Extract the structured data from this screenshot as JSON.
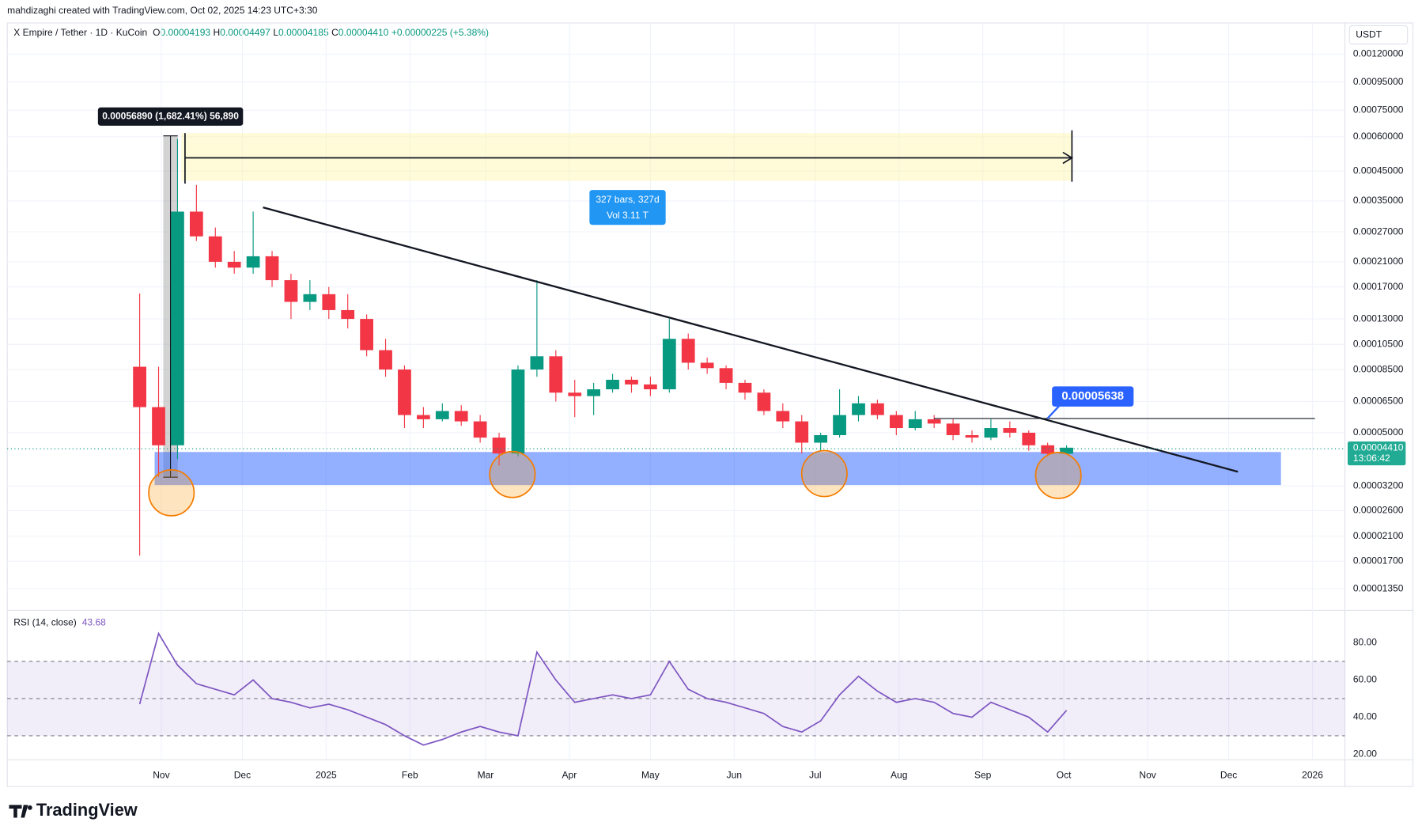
{
  "header": {
    "attribution": "mahdizaghi created with TradingView.com, Oct 02, 2025 14:23 UTC+3:30",
    "symbol": "X Empire / Tether · 1D · KuCoin",
    "ohlc": [
      {
        "label": "O",
        "value": "0.00004193"
      },
      {
        "label": "H",
        "value": "0.00004497"
      },
      {
        "label": "L",
        "value": "0.00004185"
      },
      {
        "label": "C",
        "value": "0.00004410"
      }
    ],
    "change": "+0.00000225 (+5.38%)",
    "currency": "USDT"
  },
  "chart_data": [
    {
      "type": "candlestick",
      "log_scale": true,
      "x": [
        "2024-10-24",
        "2024-10-31",
        "2024-11-07",
        "2024-11-14",
        "2024-11-21",
        "2024-11-28",
        "2024-12-05",
        "2024-12-12",
        "2024-12-19",
        "2024-12-26",
        "2025-01-02",
        "2025-01-09",
        "2025-01-16",
        "2025-01-23",
        "2025-01-30",
        "2025-02-06",
        "2025-02-13",
        "2025-02-20",
        "2025-02-27",
        "2025-03-06",
        "2025-03-13",
        "2025-03-20",
        "2025-03-27",
        "2025-04-03",
        "2025-04-10",
        "2025-04-17",
        "2025-04-24",
        "2025-05-01",
        "2025-05-08",
        "2025-05-15",
        "2025-05-22",
        "2025-05-29",
        "2025-06-05",
        "2025-06-12",
        "2025-06-19",
        "2025-06-26",
        "2025-07-03",
        "2025-07-10",
        "2025-07-17",
        "2025-07-24",
        "2025-07-31",
        "2025-08-07",
        "2025-08-14",
        "2025-08-21",
        "2025-08-28",
        "2025-09-04",
        "2025-09-11",
        "2025-09-18",
        "2025-09-25",
        "2025-10-02"
      ],
      "open": [
        8.7e-05,
        6.2e-05,
        4.5e-05,
        0.00032,
        0.00026,
        0.00021,
        0.0002,
        0.00022,
        0.00018,
        0.00015,
        0.00016,
        0.00014,
        0.00013,
        0.0001,
        8.5e-05,
        5.8e-05,
        5.6e-05,
        6e-05,
        5.5e-05,
        4.8e-05,
        4.2e-05,
        8.5e-05,
        9.5e-05,
        7e-05,
        6.8e-05,
        7.2e-05,
        7.8e-05,
        7.5e-05,
        7.2e-05,
        0.00011,
        9e-05,
        8.6e-05,
        7.6e-05,
        7e-05,
        6e-05,
        5.5e-05,
        4.6e-05,
        4.9e-05,
        5.8e-05,
        6.4e-05,
        5.8e-05,
        5.2e-05,
        5.6e-05,
        5.4e-05,
        4.9e-05,
        4.8e-05,
        5.2e-05,
        5e-05,
        4.5e-05,
        4.19e-05
      ],
      "high": [
        0.000161,
        8.7e-05,
        0.00059,
        0.0004,
        0.00028,
        0.00023,
        0.00032,
        0.00023,
        0.00019,
        0.00018,
        0.00017,
        0.00016,
        0.000135,
        0.00011,
        8.8e-05,
        6.2e-05,
        6.4e-05,
        6.3e-05,
        5.8e-05,
        5e-05,
        8.8e-05,
        0.00018,
        0.0001,
        7.8e-05,
        7.6e-05,
        8.2e-05,
        8e-05,
        8e-05,
        0.00013,
        0.000115,
        9.4e-05,
        8.8e-05,
        7.8e-05,
        7.2e-05,
        6.4e-05,
        5.8e-05,
        5e-05,
        7.2e-05,
        6.8e-05,
        6.6e-05,
        6e-05,
        6e-05,
        5.8e-05,
        5.6e-05,
        5.1e-05,
        5.6e-05,
        5.5e-05,
        5.1e-05,
        4.6e-05,
        4.497e-05
      ],
      "low": [
        1.78e-05,
        3.45e-05,
        4e-05,
        0.00025,
        0.0002,
        0.00019,
        0.00019,
        0.00017,
        0.00013,
        0.00014,
        0.00013,
        0.00012,
        9.5e-05,
        8e-05,
        5.2e-05,
        5.2e-05,
        5.5e-05,
        5.3e-05,
        4.6e-05,
        3.8e-05,
        4.1e-05,
        8e-05,
        6.5e-05,
        5.7e-05,
        5.8e-05,
        7e-05,
        7e-05,
        6.8e-05,
        7e-05,
        8.5e-05,
        8.2e-05,
        7.2e-05,
        6.6e-05,
        5.8e-05,
        5.2e-05,
        4.2e-05,
        4.3e-05,
        4.8e-05,
        5.5e-05,
        5.6e-05,
        4.9e-05,
        5.1e-05,
        5.2e-05,
        4.7e-05,
        4.6e-05,
        4.7e-05,
        4.8e-05,
        4.3e-05,
        4.1e-05,
        4.185e-05
      ],
      "close": [
        6.2e-05,
        4.5e-05,
        0.00032,
        0.00026,
        0.00021,
        0.0002,
        0.00022,
        0.00018,
        0.00015,
        0.00016,
        0.00014,
        0.00013,
        0.0001,
        8.5e-05,
        5.8e-05,
        5.6e-05,
        6e-05,
        5.5e-05,
        4.8e-05,
        4.2e-05,
        8.5e-05,
        9.5e-05,
        7e-05,
        6.8e-05,
        7.2e-05,
        7.8e-05,
        7.5e-05,
        7.2e-05,
        0.00011,
        9e-05,
        8.6e-05,
        7.6e-05,
        7e-05,
        6e-05,
        5.5e-05,
        4.6e-05,
        4.9e-05,
        5.8e-05,
        6.4e-05,
        5.8e-05,
        5.2e-05,
        5.6e-05,
        5.4e-05,
        4.9e-05,
        4.8e-05,
        5.2e-05,
        5e-05,
        4.5e-05,
        4.19e-05,
        4.41e-05
      ],
      "up_color": "#089981",
      "down_color": "#f23645",
      "xlim": [
        "2024-09-05",
        "2026-01-13"
      ],
      "xticks": [
        {
          "value": "2024-11-01",
          "label": "Nov"
        },
        {
          "value": "2024-12-01",
          "label": "Dec"
        },
        {
          "value": "2025-01-01",
          "label": "2025"
        },
        {
          "value": "2025-02-01",
          "label": "Feb"
        },
        {
          "value": "2025-03-01",
          "label": "Mar"
        },
        {
          "value": "2025-04-01",
          "label": "Apr"
        },
        {
          "value": "2025-05-01",
          "label": "May"
        },
        {
          "value": "2025-06-01",
          "label": "Jun"
        },
        {
          "value": "2025-07-01",
          "label": "Jul"
        },
        {
          "value": "2025-08-01",
          "label": "Aug"
        },
        {
          "value": "2025-09-01",
          "label": "Sep"
        },
        {
          "value": "2025-10-01",
          "label": "Oct"
        },
        {
          "value": "2025-11-01",
          "label": "Nov"
        },
        {
          "value": "2025-12-01",
          "label": "Dec"
        },
        {
          "value": "2026-01-01",
          "label": "2026"
        }
      ],
      "ylim": [
        1.17e-05,
        0.00156
      ],
      "yticks": [
        {
          "value": 0.0012,
          "label": "0.00120000"
        },
        {
          "value": 0.00095,
          "label": "0.00095000"
        },
        {
          "value": 0.00075,
          "label": "0.00075000"
        },
        {
          "value": 0.0006,
          "label": "0.00060000"
        },
        {
          "value": 0.00045,
          "label": "0.00045000"
        },
        {
          "value": 0.00035,
          "label": "0.00035000"
        },
        {
          "value": 0.00027,
          "label": "0.00027000"
        },
        {
          "value": 0.00021,
          "label": "0.00021000"
        },
        {
          "value": 0.00017,
          "label": "0.00017000"
        },
        {
          "value": 0.00013,
          "label": "0.00013000"
        },
        {
          "value": 0.000105,
          "label": "0.00010500"
        },
        {
          "value": 8.5e-05,
          "label": "0.00008500"
        },
        {
          "value": 6.5e-05,
          "label": "0.00006500"
        },
        {
          "value": 5e-05,
          "label": "0.00005000"
        },
        {
          "value": 3.2e-05,
          "label": "0.00003200"
        },
        {
          "value": 2.6e-05,
          "label": "0.00002600"
        },
        {
          "value": 2.1e-05,
          "label": "0.00002100"
        },
        {
          "value": 1.7e-05,
          "label": "0.00001700"
        },
        {
          "value": 1.35e-05,
          "label": "0.00001350"
        }
      ],
      "last_price_label": "0.00004410",
      "countdown": "13:06:42",
      "annotations": {
        "measure": "0.00056890 (1,682.41%) 56,890",
        "range_bars": "327 bars, 327d",
        "range_volume": "Vol 3.11 T",
        "price_callout": "0.00005638"
      }
    },
    {
      "type": "line",
      "title": "RSI (14, close)",
      "color": "#7e57c2",
      "values": [
        47,
        85,
        68,
        58,
        55,
        52,
        60,
        50,
        48,
        45,
        47,
        44,
        40,
        36,
        30,
        25,
        28,
        32,
        35,
        32,
        30,
        75,
        60,
        48,
        50,
        52,
        50,
        52,
        70,
        55,
        50,
        48,
        45,
        42,
        35,
        32,
        38,
        52,
        62,
        54,
        48,
        50,
        48,
        42,
        40,
        48,
        44,
        40,
        32,
        43.68
      ],
      "ylim": [
        17,
        96
      ],
      "levels": [
        70,
        50,
        30
      ],
      "yticks": [
        {
          "value": 80,
          "label": "80.00"
        },
        {
          "value": 60,
          "label": "60.00"
        },
        {
          "value": 40,
          "label": "40.00"
        },
        {
          "value": 20,
          "label": "20.00"
        }
      ]
    }
  ],
  "footer": {
    "brand": "TradingView"
  }
}
